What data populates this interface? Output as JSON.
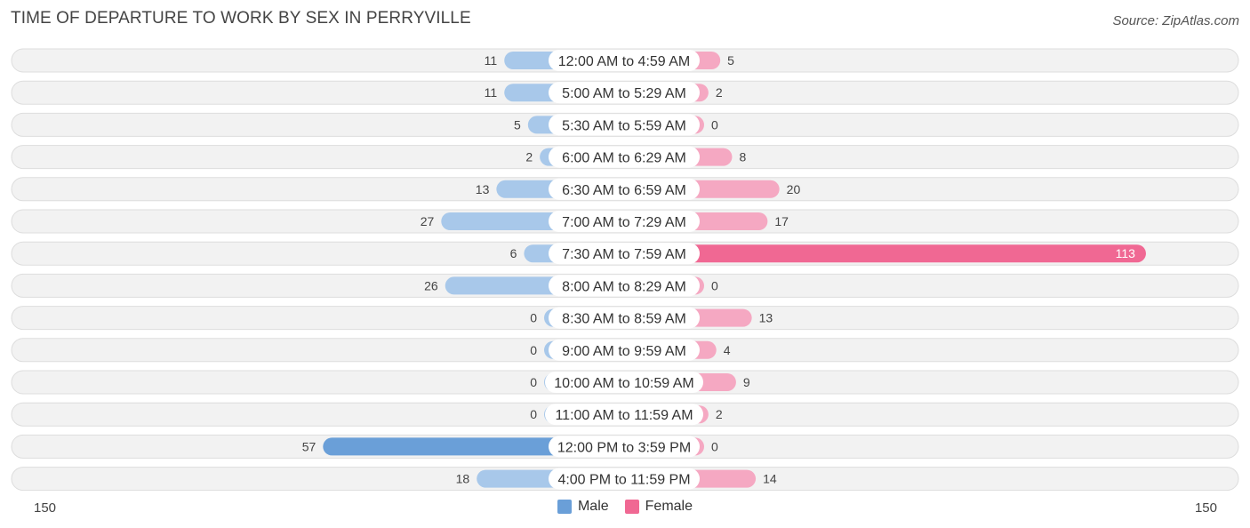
{
  "title": "TIME OF DEPARTURE TO WORK BY SEX IN PERRYVILLE",
  "source": "Source: ZipAtlas.com",
  "colors": {
    "male": "#a8c8ea",
    "male_strong": "#6a9fd8",
    "female": "#f5a8c2",
    "female_strong": "#f06893",
    "row_bg": "#f2f2f2",
    "row_border": "#dddddd"
  },
  "legend": {
    "male_label": "Male",
    "female_label": "Female"
  },
  "axis": {
    "left_label": "150",
    "right_label": "150"
  },
  "chart_data": {
    "type": "bar",
    "orientation": "horizontal-diverging",
    "title": "TIME OF DEPARTURE TO WORK BY SEX IN PERRYVILLE",
    "xlim": [
      -150,
      150
    ],
    "categories": [
      "12:00 AM to 4:59 AM",
      "5:00 AM to 5:29 AM",
      "5:30 AM to 5:59 AM",
      "6:00 AM to 6:29 AM",
      "6:30 AM to 6:59 AM",
      "7:00 AM to 7:29 AM",
      "7:30 AM to 7:59 AM",
      "8:00 AM to 8:29 AM",
      "8:30 AM to 8:59 AM",
      "9:00 AM to 9:59 AM",
      "10:00 AM to 10:59 AM",
      "11:00 AM to 11:59 AM",
      "12:00 PM to 3:59 PM",
      "4:00 PM to 11:59 PM"
    ],
    "series": [
      {
        "name": "Male",
        "values": [
          11,
          11,
          5,
          2,
          13,
          27,
          6,
          26,
          0,
          0,
          0,
          0,
          57,
          18
        ]
      },
      {
        "name": "Female",
        "values": [
          5,
          2,
          0,
          8,
          20,
          17,
          113,
          0,
          13,
          4,
          9,
          2,
          0,
          14
        ]
      }
    ],
    "legend_position": "bottom-center"
  }
}
